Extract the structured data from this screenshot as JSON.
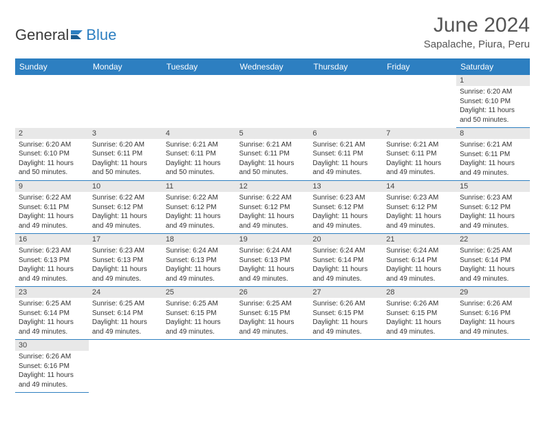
{
  "logo": {
    "text1": "General",
    "text2": "Blue"
  },
  "title": "June 2024",
  "location": "Sapalache, Piura, Peru",
  "dayHeaders": [
    "Sunday",
    "Monday",
    "Tuesday",
    "Wednesday",
    "Thursday",
    "Friday",
    "Saturday"
  ],
  "colors": {
    "headerBg": "#2d7fc1",
    "headerText": "#ffffff",
    "dayNumBg": "#e8e8e8",
    "border": "#2d7fc1"
  },
  "weeks": [
    [
      null,
      null,
      null,
      null,
      null,
      null,
      {
        "n": "1",
        "sr": "6:20 AM",
        "ss": "6:10 PM",
        "dl": "11 hours and 50 minutes."
      }
    ],
    [
      {
        "n": "2",
        "sr": "6:20 AM",
        "ss": "6:10 PM",
        "dl": "11 hours and 50 minutes."
      },
      {
        "n": "3",
        "sr": "6:20 AM",
        "ss": "6:11 PM",
        "dl": "11 hours and 50 minutes."
      },
      {
        "n": "4",
        "sr": "6:21 AM",
        "ss": "6:11 PM",
        "dl": "11 hours and 50 minutes."
      },
      {
        "n": "5",
        "sr": "6:21 AM",
        "ss": "6:11 PM",
        "dl": "11 hours and 50 minutes."
      },
      {
        "n": "6",
        "sr": "6:21 AM",
        "ss": "6:11 PM",
        "dl": "11 hours and 49 minutes."
      },
      {
        "n": "7",
        "sr": "6:21 AM",
        "ss": "6:11 PM",
        "dl": "11 hours and 49 minutes."
      },
      {
        "n": "8",
        "sr": "6:21 AM",
        "ss": "6:11 PM",
        "dl": "11 hours and 49 minutes."
      }
    ],
    [
      {
        "n": "9",
        "sr": "6:22 AM",
        "ss": "6:11 PM",
        "dl": "11 hours and 49 minutes."
      },
      {
        "n": "10",
        "sr": "6:22 AM",
        "ss": "6:12 PM",
        "dl": "11 hours and 49 minutes."
      },
      {
        "n": "11",
        "sr": "6:22 AM",
        "ss": "6:12 PM",
        "dl": "11 hours and 49 minutes."
      },
      {
        "n": "12",
        "sr": "6:22 AM",
        "ss": "6:12 PM",
        "dl": "11 hours and 49 minutes."
      },
      {
        "n": "13",
        "sr": "6:23 AM",
        "ss": "6:12 PM",
        "dl": "11 hours and 49 minutes."
      },
      {
        "n": "14",
        "sr": "6:23 AM",
        "ss": "6:12 PM",
        "dl": "11 hours and 49 minutes."
      },
      {
        "n": "15",
        "sr": "6:23 AM",
        "ss": "6:12 PM",
        "dl": "11 hours and 49 minutes."
      }
    ],
    [
      {
        "n": "16",
        "sr": "6:23 AM",
        "ss": "6:13 PM",
        "dl": "11 hours and 49 minutes."
      },
      {
        "n": "17",
        "sr": "6:23 AM",
        "ss": "6:13 PM",
        "dl": "11 hours and 49 minutes."
      },
      {
        "n": "18",
        "sr": "6:24 AM",
        "ss": "6:13 PM",
        "dl": "11 hours and 49 minutes."
      },
      {
        "n": "19",
        "sr": "6:24 AM",
        "ss": "6:13 PM",
        "dl": "11 hours and 49 minutes."
      },
      {
        "n": "20",
        "sr": "6:24 AM",
        "ss": "6:14 PM",
        "dl": "11 hours and 49 minutes."
      },
      {
        "n": "21",
        "sr": "6:24 AM",
        "ss": "6:14 PM",
        "dl": "11 hours and 49 minutes."
      },
      {
        "n": "22",
        "sr": "6:25 AM",
        "ss": "6:14 PM",
        "dl": "11 hours and 49 minutes."
      }
    ],
    [
      {
        "n": "23",
        "sr": "6:25 AM",
        "ss": "6:14 PM",
        "dl": "11 hours and 49 minutes."
      },
      {
        "n": "24",
        "sr": "6:25 AM",
        "ss": "6:14 PM",
        "dl": "11 hours and 49 minutes."
      },
      {
        "n": "25",
        "sr": "6:25 AM",
        "ss": "6:15 PM",
        "dl": "11 hours and 49 minutes."
      },
      {
        "n": "26",
        "sr": "6:25 AM",
        "ss": "6:15 PM",
        "dl": "11 hours and 49 minutes."
      },
      {
        "n": "27",
        "sr": "6:26 AM",
        "ss": "6:15 PM",
        "dl": "11 hours and 49 minutes."
      },
      {
        "n": "28",
        "sr": "6:26 AM",
        "ss": "6:15 PM",
        "dl": "11 hours and 49 minutes."
      },
      {
        "n": "29",
        "sr": "6:26 AM",
        "ss": "6:16 PM",
        "dl": "11 hours and 49 minutes."
      }
    ],
    [
      {
        "n": "30",
        "sr": "6:26 AM",
        "ss": "6:16 PM",
        "dl": "11 hours and 49 minutes."
      },
      null,
      null,
      null,
      null,
      null,
      null
    ]
  ],
  "labels": {
    "sunrise": "Sunrise:",
    "sunset": "Sunset:",
    "daylight": "Daylight:"
  }
}
